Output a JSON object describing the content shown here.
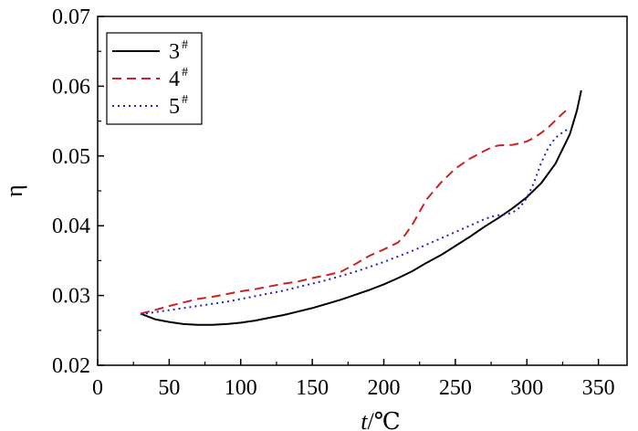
{
  "chart_data": {
    "type": "line",
    "title": "",
    "xlabel": "t/℃",
    "ylabel": "η",
    "xlim": [
      0,
      370
    ],
    "ylim": [
      0.02,
      0.07
    ],
    "x_ticks": [
      0,
      50,
      100,
      150,
      200,
      250,
      300,
      350
    ],
    "x_tick_labels": [
      "0",
      "50",
      "100",
      "150",
      "200",
      "250",
      "300",
      "350"
    ],
    "y_ticks": [
      0.02,
      0.03,
      0.04,
      0.05,
      0.06,
      0.07
    ],
    "y_tick_labels": [
      "0.02",
      "0.03",
      "0.04",
      "0.05",
      "0.06",
      "0.07"
    ],
    "grid": false,
    "legend_position": "top-left",
    "series": [
      {
        "name": "3#",
        "label_main": "3",
        "label_sup": "#",
        "color": "#000000",
        "style": "solid",
        "points": [
          [
            30,
            0.0274
          ],
          [
            40,
            0.0266
          ],
          [
            50,
            0.0262
          ],
          [
            60,
            0.0259
          ],
          [
            70,
            0.0258
          ],
          [
            80,
            0.0258
          ],
          [
            90,
            0.0259
          ],
          [
            100,
            0.0261
          ],
          [
            110,
            0.0264
          ],
          [
            120,
            0.0268
          ],
          [
            130,
            0.0272
          ],
          [
            140,
            0.0277
          ],
          [
            150,
            0.0282
          ],
          [
            160,
            0.0288
          ],
          [
            170,
            0.0294
          ],
          [
            180,
            0.0301
          ],
          [
            190,
            0.0308
          ],
          [
            200,
            0.0316
          ],
          [
            210,
            0.0325
          ],
          [
            220,
            0.0335
          ],
          [
            230,
            0.0347
          ],
          [
            240,
            0.0358
          ],
          [
            250,
            0.0371
          ],
          [
            260,
            0.0384
          ],
          [
            270,
            0.0398
          ],
          [
            280,
            0.0411
          ],
          [
            290,
            0.0425
          ],
          [
            300,
            0.0441
          ],
          [
            310,
            0.0461
          ],
          [
            320,
            0.0489
          ],
          [
            330,
            0.0531
          ],
          [
            335,
            0.0565
          ],
          [
            338,
            0.0594
          ]
        ]
      },
      {
        "name": "4#",
        "label_main": "4",
        "label_sup": "#",
        "color": "#cc2222",
        "style": "dashed",
        "points": [
          [
            30,
            0.0274
          ],
          [
            40,
            0.0279
          ],
          [
            50,
            0.0285
          ],
          [
            60,
            0.029
          ],
          [
            70,
            0.0295
          ],
          [
            80,
            0.0298
          ],
          [
            90,
            0.0302
          ],
          [
            100,
            0.0306
          ],
          [
            110,
            0.0309
          ],
          [
            120,
            0.0313
          ],
          [
            130,
            0.0317
          ],
          [
            140,
            0.032
          ],
          [
            150,
            0.0325
          ],
          [
            160,
            0.0329
          ],
          [
            170,
            0.0334
          ],
          [
            180,
            0.0345
          ],
          [
            190,
            0.0357
          ],
          [
            200,
            0.0366
          ],
          [
            210,
            0.0376
          ],
          [
            215,
            0.0387
          ],
          [
            220,
            0.0402
          ],
          [
            225,
            0.042
          ],
          [
            230,
            0.0438
          ],
          [
            240,
            0.0462
          ],
          [
            250,
            0.0482
          ],
          [
            260,
            0.0496
          ],
          [
            270,
            0.0507
          ],
          [
            275,
            0.0512
          ],
          [
            280,
            0.0515
          ],
          [
            290,
            0.0516
          ],
          [
            295,
            0.0518
          ],
          [
            300,
            0.0521
          ],
          [
            305,
            0.0526
          ],
          [
            310,
            0.0533
          ],
          [
            315,
            0.0541
          ],
          [
            320,
            0.0551
          ],
          [
            325,
            0.0561
          ],
          [
            330,
            0.057
          ]
        ]
      },
      {
        "name": "5#",
        "label_main": "5",
        "label_sup": "#",
        "color": "#2222cc",
        "style": "dotted",
        "points": [
          [
            30,
            0.0273
          ],
          [
            40,
            0.0276
          ],
          [
            50,
            0.0279
          ],
          [
            60,
            0.0282
          ],
          [
            70,
            0.0285
          ],
          [
            80,
            0.0288
          ],
          [
            90,
            0.0291
          ],
          [
            100,
            0.0295
          ],
          [
            110,
            0.0299
          ],
          [
            120,
            0.0303
          ],
          [
            130,
            0.0307
          ],
          [
            140,
            0.0312
          ],
          [
            150,
            0.0317
          ],
          [
            160,
            0.0322
          ],
          [
            170,
            0.0328
          ],
          [
            180,
            0.0334
          ],
          [
            190,
            0.0341
          ],
          [
            200,
            0.0348
          ],
          [
            210,
            0.0356
          ],
          [
            220,
            0.0364
          ],
          [
            230,
            0.0373
          ],
          [
            240,
            0.0382
          ],
          [
            250,
            0.0391
          ],
          [
            260,
            0.04
          ],
          [
            270,
            0.0409
          ],
          [
            275,
            0.0413
          ],
          [
            280,
            0.0415
          ],
          [
            285,
            0.0416
          ],
          [
            290,
            0.0419
          ],
          [
            295,
            0.0426
          ],
          [
            300,
            0.044
          ],
          [
            305,
            0.0462
          ],
          [
            310,
            0.049
          ],
          [
            315,
            0.0512
          ],
          [
            320,
            0.0526
          ],
          [
            325,
            0.0534
          ],
          [
            330,
            0.054
          ]
        ]
      }
    ]
  }
}
